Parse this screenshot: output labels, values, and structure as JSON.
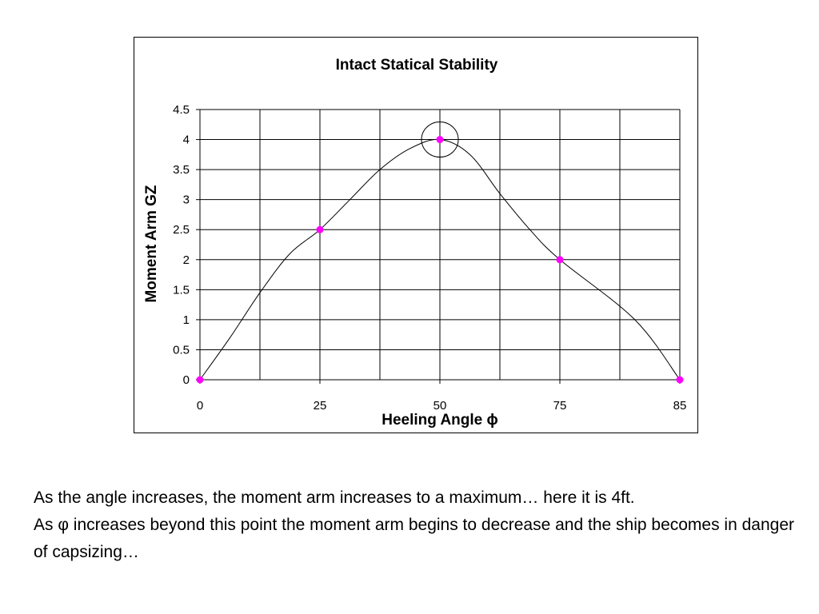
{
  "chart_data": {
    "type": "line",
    "title": "Intact Statical Stability",
    "xlabel": "Heeling Angle ϕ",
    "ylabel": "Moment Arm GZ",
    "categories": [
      "0",
      "25",
      "50",
      "75",
      "85"
    ],
    "x": [
      0,
      25,
      50,
      75,
      85
    ],
    "series": [
      {
        "values": [
          0,
          2.5,
          4,
          2,
          0
        ]
      }
    ],
    "curve": [
      [
        0,
        0
      ],
      [
        6.25,
        0.7
      ],
      [
        12.5,
        1.45
      ],
      [
        18.75,
        2.1
      ],
      [
        25,
        2.5
      ],
      [
        31.25,
        3.0
      ],
      [
        37.5,
        3.5
      ],
      [
        43.75,
        3.85
      ],
      [
        50,
        4.0
      ],
      [
        56.25,
        3.75
      ],
      [
        62.5,
        3.1
      ],
      [
        68.75,
        2.5
      ],
      [
        75,
        2.0
      ],
      [
        81.25,
        1.0
      ],
      [
        85,
        0.0
      ]
    ],
    "yticks": [
      0,
      0.5,
      1,
      1.5,
      2,
      2.5,
      3,
      3.5,
      4,
      4.5
    ],
    "ytick_labels": [
      "0",
      "0.5",
      "1",
      "1.5",
      "2",
      "2.5",
      "3",
      "3.5",
      "4",
      "4.5"
    ],
    "ylim": [
      0,
      4.5
    ],
    "grid": true,
    "highlight_index": 2,
    "marker_color": "#ff00ff",
    "line_color": "#000000"
  },
  "caption": {
    "line1": "As the angle increases, the moment arm increases to a maximum… here it is 4ft.",
    "line2": "As φ increases beyond this point the moment arm begins to decrease and the ship becomes in danger of capsizing…"
  }
}
